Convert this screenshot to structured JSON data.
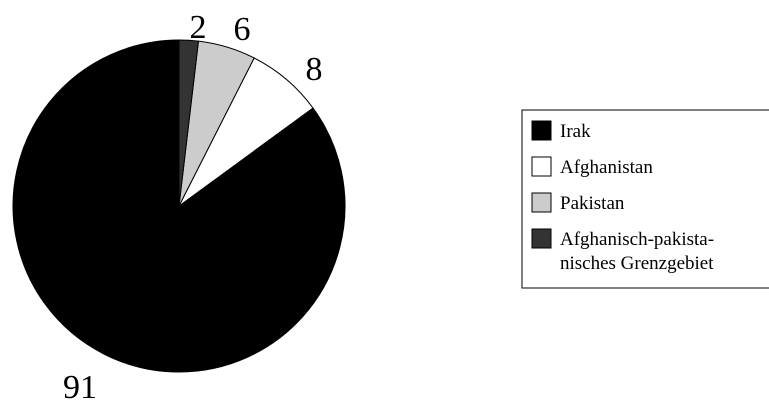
{
  "chart_data": {
    "type": "pie",
    "title": "",
    "start_angle_deg": 0,
    "direction": "counterclockwise",
    "legend_position": "right",
    "slices": [
      {
        "label": "Irak",
        "legend_lines": [
          "Irak"
        ],
        "value": 91,
        "value_label": "91",
        "color": "#000000"
      },
      {
        "label": "Afghanistan",
        "legend_lines": [
          "Afghanistan"
        ],
        "value": 8,
        "value_label": "8",
        "color": "#ffffff"
      },
      {
        "label": "Pakistan",
        "legend_lines": [
          "Pakistan"
        ],
        "value": 6,
        "value_label": "6",
        "color": "#cccccc"
      },
      {
        "label": "Afghanisch-pakistanisches Grenzgebiet",
        "legend_lines": [
          "Afghanisch-pakista-",
          "nisches Grenzgebiet"
        ],
        "value": 2,
        "value_label": "2",
        "color": "#333333"
      }
    ]
  }
}
